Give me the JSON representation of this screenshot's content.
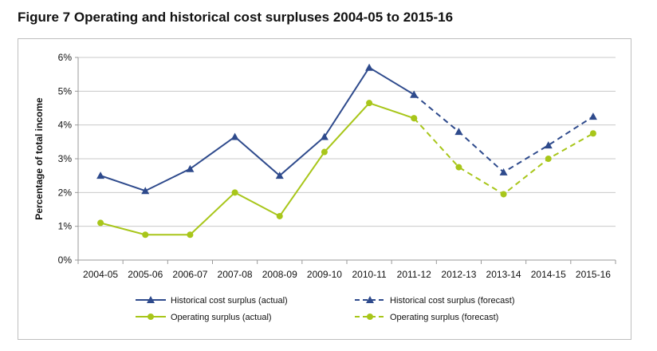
{
  "chart_data": {
    "type": "line",
    "title": "Figure 7 Operating and historical cost surpluses 2004-05 to 2015-16",
    "xlabel": "",
    "ylabel": "Percentage of total income",
    "ylim": [
      0,
      6
    ],
    "yticks": [
      "0%",
      "1%",
      "2%",
      "3%",
      "4%",
      "5%",
      "6%"
    ],
    "grid": "horizontal",
    "categories": [
      "2004-05",
      "2005-06",
      "2006-07",
      "2007-08",
      "2008-09",
      "2009-10",
      "2010-11",
      "2011-12",
      "2012-13",
      "2013-14",
      "2014-15",
      "2015-16"
    ],
    "series": [
      {
        "name": "Historical cost surplus (actual)",
        "color": "#2e4a8c",
        "marker": "triangle",
        "dash": "solid",
        "values": [
          2.5,
          2.05,
          2.7,
          3.65,
          2.5,
          3.65,
          5.7,
          4.9,
          null,
          null,
          null,
          null
        ]
      },
      {
        "name": "Historical cost surplus (forecast)",
        "color": "#2e4a8c",
        "marker": "triangle",
        "dash": "dashed",
        "values": [
          null,
          null,
          null,
          null,
          null,
          null,
          null,
          4.9,
          3.8,
          2.6,
          3.4,
          4.25
        ]
      },
      {
        "name": "Operating surplus (actual)",
        "color": "#a8c61a",
        "marker": "circle",
        "dash": "solid",
        "values": [
          1.1,
          0.75,
          0.75,
          2.0,
          1.3,
          3.2,
          4.65,
          4.2,
          null,
          null,
          null,
          null
        ]
      },
      {
        "name": "Operating surplus (forecast)",
        "color": "#a8c61a",
        "marker": "circle",
        "dash": "dashed",
        "values": [
          null,
          null,
          null,
          null,
          null,
          null,
          null,
          4.2,
          2.75,
          1.95,
          3.0,
          3.75
        ]
      }
    ],
    "legend": "bottom"
  }
}
